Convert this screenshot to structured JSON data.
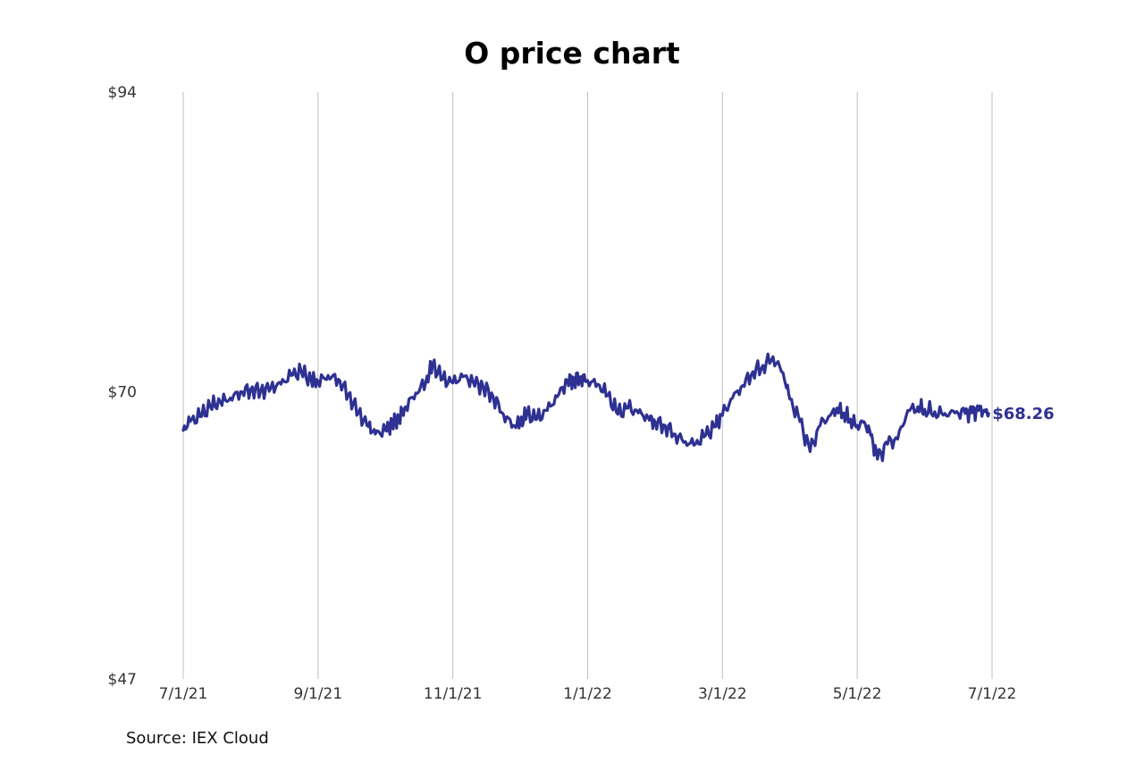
{
  "chart_data": {
    "type": "line",
    "title": "O price chart",
    "source": "Source: IEX Cloud",
    "xlabel": "",
    "ylabel": "",
    "ylim": [
      47,
      94
    ],
    "y_ticks": [
      "$47",
      "$70",
      "$94"
    ],
    "y_tick_values": [
      47,
      70,
      94
    ],
    "x_ticks": [
      "7/1/21",
      "9/1/21",
      "11/1/21",
      "1/1/22",
      "3/1/22",
      "5/1/22",
      "7/1/22"
    ],
    "grid": "vertical",
    "legend": "none",
    "line_color": "#2e3192",
    "end_label": "$68.26",
    "series": [
      {
        "name": "O",
        "x_month": [
          0.0,
          0.1,
          0.25,
          0.4,
          0.55,
          0.7,
          0.85,
          1.0,
          1.15,
          1.3,
          1.45,
          1.6,
          1.75,
          1.9,
          2.0,
          2.15,
          2.3,
          2.45,
          2.6,
          2.75,
          2.85,
          3.0,
          3.1,
          3.2,
          3.3,
          3.45,
          3.6,
          3.7,
          3.85,
          4.0,
          4.15,
          4.3,
          4.45,
          4.6,
          4.75,
          4.9,
          5.0,
          5.1,
          5.25,
          5.4,
          5.55,
          5.7,
          5.8,
          5.9,
          6.0,
          6.15,
          6.3,
          6.45,
          6.6,
          6.75,
          6.9,
          7.0,
          7.15,
          7.3,
          7.45,
          7.6,
          7.75,
          7.9,
          8.0,
          8.15,
          8.3,
          8.45,
          8.6,
          8.75,
          8.9,
          9.0,
          9.15,
          9.3,
          9.45,
          9.6,
          9.7,
          9.8,
          9.9,
          10.0,
          10.1,
          10.2,
          10.3,
          10.45,
          10.6,
          10.75,
          10.9,
          11.0,
          11.15,
          11.3,
          11.45,
          11.6,
          11.7,
          11.8,
          11.9,
          11.95
        ],
        "values": [
          66.9,
          67.6,
          68.0,
          68.8,
          69.2,
          69.5,
          70.0,
          70.2,
          70.1,
          70.3,
          70.6,
          71.3,
          71.6,
          70.9,
          70.8,
          71.3,
          71.0,
          69.8,
          68.3,
          67.2,
          66.6,
          66.9,
          67.4,
          67.9,
          68.8,
          69.9,
          70.8,
          72.2,
          71.0,
          70.7,
          71.2,
          70.8,
          70.4,
          69.6,
          68.2,
          67.3,
          67.5,
          68.2,
          67.8,
          68.5,
          69.6,
          70.9,
          71.0,
          71.2,
          70.9,
          70.6,
          69.7,
          68.2,
          68.7,
          68.3,
          67.9,
          67.6,
          67.3,
          66.6,
          66.0,
          65.8,
          66.5,
          67.2,
          68.1,
          69.5,
          70.5,
          71.6,
          72.1,
          72.8,
          71.5,
          69.4,
          67.6,
          65.2,
          67.3,
          68.1,
          68.7,
          68.3,
          67.8,
          67.3,
          67.6,
          66.5,
          64.6,
          65.8,
          66.2,
          68.5,
          68.8,
          68.6,
          68.4,
          68.26,
          68.3,
          68.26,
          68.3,
          68.5,
          68.4,
          68.26
        ]
      }
    ]
  }
}
